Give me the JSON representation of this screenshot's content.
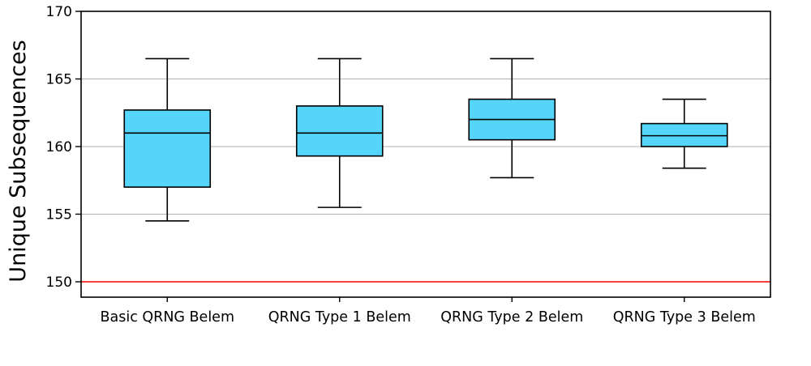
{
  "chart_data": {
    "type": "boxplot",
    "title": "",
    "xlabel": "",
    "ylabel": "Unique Subsequences",
    "categories": [
      "Basic QRNG Belem",
      "QRNG Type 1 Belem",
      "QRNG Type 2 Belem",
      "QRNG Type 3 Belem"
    ],
    "series": [
      {
        "label": "Basic QRNG Belem",
        "whisker_low": 154.5,
        "q1": 157.0,
        "median": 161.0,
        "q3": 162.7,
        "whisker_high": 166.5
      },
      {
        "label": "QRNG Type 1 Belem",
        "whisker_low": 155.5,
        "q1": 159.3,
        "median": 161.0,
        "q3": 163.0,
        "whisker_high": 166.5
      },
      {
        "label": "QRNG Type 2 Belem",
        "whisker_low": 157.7,
        "q1": 160.5,
        "median": 162.0,
        "q3": 163.5,
        "whisker_high": 166.5
      },
      {
        "label": "QRNG Type 3 Belem",
        "whisker_low": 158.4,
        "q1": 160.0,
        "median": 160.8,
        "q3": 161.7,
        "whisker_high": 163.5
      }
    ],
    "yticks": [
      150,
      155,
      160,
      165,
      170
    ],
    "ytick_labels": [
      "150",
      "155",
      "160",
      "165",
      "170"
    ],
    "ylim": [
      148.86,
      170
    ],
    "grid": true,
    "legend": "none",
    "reference_line": {
      "y": 150,
      "color": "#ff0000"
    },
    "colors": {
      "box_fill": "#55d5fa",
      "box_edge": "#000000",
      "median": "#000000",
      "whisker": "#000000",
      "grid": "#b0b0b0",
      "axis": "#000000",
      "background": "#ffffff"
    }
  }
}
